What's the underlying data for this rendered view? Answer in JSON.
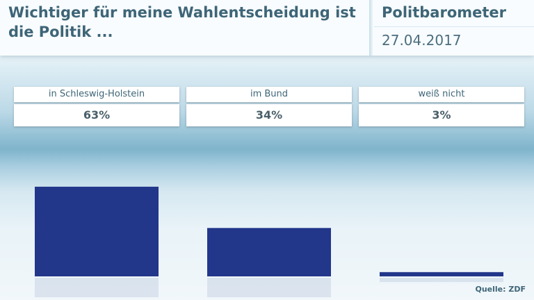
{
  "header": {
    "title": "Wichtiger für meine Wahlentscheidung ist die Politik ...",
    "brand": "Politbarometer",
    "date": "27.04.2017"
  },
  "chart_data": {
    "type": "bar",
    "title": "Wichtiger für meine Wahlentscheidung ist die Politik ...",
    "categories": [
      "in Schleswig-Holstein",
      "im Bund",
      "weiß nicht"
    ],
    "values": [
      63,
      34,
      3
    ],
    "value_labels": [
      "63%",
      "34%",
      "3%"
    ],
    "unit": "%",
    "ylim": [
      0,
      100
    ],
    "bar_color": "#22368a"
  },
  "source": "Quelle: ZDF"
}
